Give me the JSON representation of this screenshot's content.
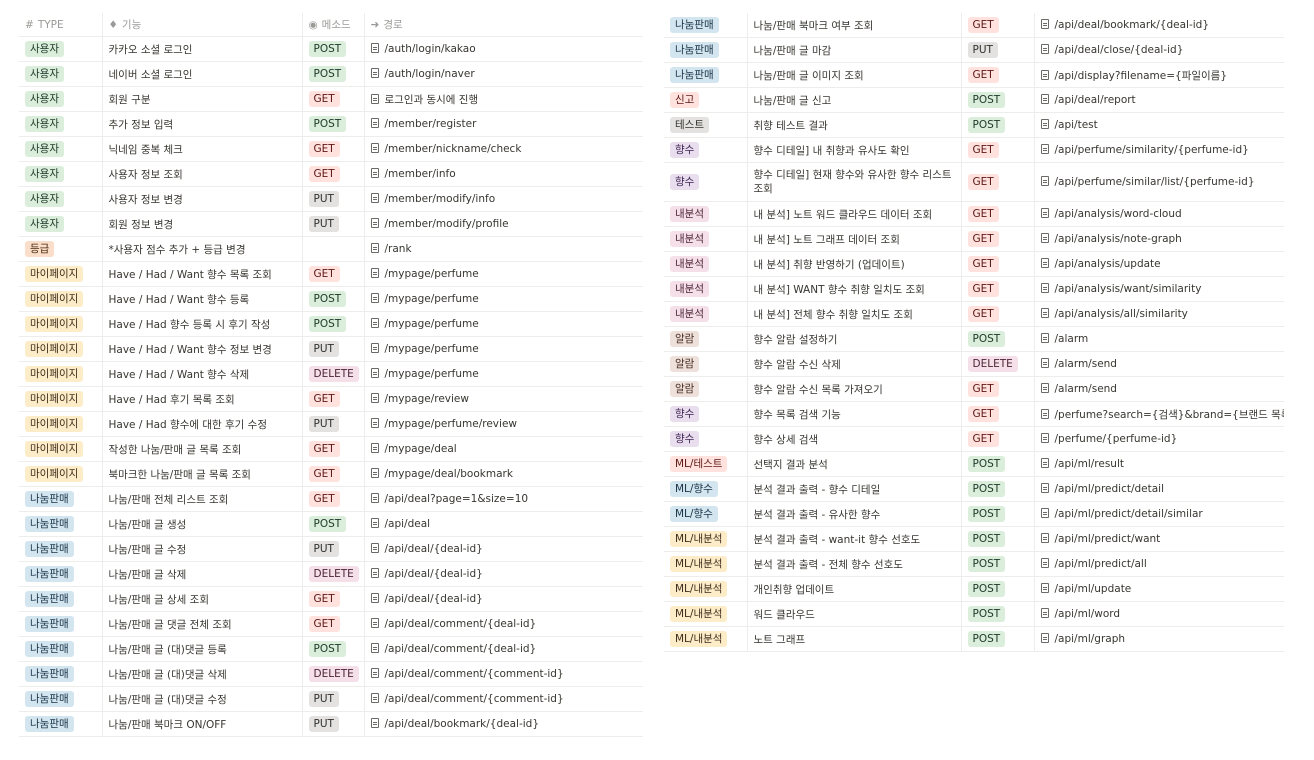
{
  "header": {
    "type_icon": "#",
    "type_label": "TYPE",
    "func_label": "기능",
    "method_label": "메소드",
    "path_label": "경로"
  },
  "colors": {
    "gray": "#e3e2e0",
    "green": "#dbeddb",
    "red": "#ffe2dd",
    "pink": "#f5e0e9",
    "orange": "#fadec9",
    "yellow": "#fdecc8",
    "blue": "#d3e5ef",
    "purple": "#e8deee",
    "brown": "#eee0da"
  },
  "left_rows": [
    {
      "type": "사용자",
      "type_color": "green",
      "func": "카카오 소셜 로그인",
      "method": "POST",
      "method_color": "green",
      "path": "/auth/login/kakao"
    },
    {
      "type": "사용자",
      "type_color": "green",
      "func": "네이버 소셜 로그인",
      "method": "POST",
      "method_color": "green",
      "path": "/auth/login/naver"
    },
    {
      "type": "사용자",
      "type_color": "green",
      "func": "회원 구분",
      "method": "GET",
      "method_color": "red",
      "path": "로그인과 동시에 진행"
    },
    {
      "type": "사용자",
      "type_color": "green",
      "func": "추가 정보 입력",
      "method": "POST",
      "method_color": "green",
      "path": "/member/register"
    },
    {
      "type": "사용자",
      "type_color": "green",
      "func": "닉네임 중복 체크",
      "method": "GET",
      "method_color": "red",
      "path": "/member/nickname/check"
    },
    {
      "type": "사용자",
      "type_color": "green",
      "func": "사용자 정보 조회",
      "method": "GET",
      "method_color": "red",
      "path": "/member/info"
    },
    {
      "type": "사용자",
      "type_color": "green",
      "func": "사용자 정보 변경",
      "method": "PUT",
      "method_color": "gray",
      "path": "/member/modify/info"
    },
    {
      "type": "사용자",
      "type_color": "green",
      "func": "회원 정보 변경",
      "method": "PUT",
      "method_color": "gray",
      "path": "/member/modify/profile"
    },
    {
      "type": "등급",
      "type_color": "orange",
      "func": "*사용자 점수 추가 + 등급 변경",
      "method": "",
      "method_color": "",
      "path": "/rank"
    },
    {
      "type": "마이페이지",
      "type_color": "yellow",
      "func": "Have / Had / Want 향수 목록 조회",
      "method": "GET",
      "method_color": "red",
      "path": "/mypage/perfume"
    },
    {
      "type": "마이페이지",
      "type_color": "yellow",
      "func": "Have / Had / Want 향수 등록",
      "method": "POST",
      "method_color": "green",
      "path": "/mypage/perfume"
    },
    {
      "type": "마이페이지",
      "type_color": "yellow",
      "func": "Have / Had 향수 등록 시 후기 작성",
      "method": "POST",
      "method_color": "green",
      "path": "/mypage/perfume"
    },
    {
      "type": "마이페이지",
      "type_color": "yellow",
      "func": "Have / Had / Want 향수 정보 변경",
      "method": "PUT",
      "method_color": "gray",
      "path": "/mypage/perfume"
    },
    {
      "type": "마이페이지",
      "type_color": "yellow",
      "func": "Have / Had / Want 향수 삭제",
      "method": "DELETE",
      "method_color": "pink",
      "path": "/mypage/perfume"
    },
    {
      "type": "마이페이지",
      "type_color": "yellow",
      "func": "Have / Had 후기 목록 조회",
      "method": "GET",
      "method_color": "red",
      "path": "/mypage/review"
    },
    {
      "type": "마이페이지",
      "type_color": "yellow",
      "func": "Have / Had 향수에 대한 후기 수정",
      "method": "PUT",
      "method_color": "gray",
      "path": "/mypage/perfume/review"
    },
    {
      "type": "마이페이지",
      "type_color": "yellow",
      "func": "작성한 나눔/판매 글 목록 조회",
      "method": "GET",
      "method_color": "red",
      "path": "/mypage/deal"
    },
    {
      "type": "마이페이지",
      "type_color": "yellow",
      "func": "북마크한 나눔/판매 글 목록 조회",
      "method": "GET",
      "method_color": "red",
      "path": "/mypage/deal/bookmark"
    },
    {
      "type": "나눔판매",
      "type_color": "blue",
      "func": "나눔/판매 전체 리스트 조회",
      "method": "GET",
      "method_color": "red",
      "path": "/api/deal?page=1&size=10"
    },
    {
      "type": "나눔판매",
      "type_color": "blue",
      "func": "나눔/판매 글 생성",
      "method": "POST",
      "method_color": "green",
      "path": "/api/deal"
    },
    {
      "type": "나눔판매",
      "type_color": "blue",
      "func": "나눔/판매 글 수정",
      "method": "PUT",
      "method_color": "gray",
      "path": "/api/deal/{deal-id}"
    },
    {
      "type": "나눔판매",
      "type_color": "blue",
      "func": "나눔/판매 글 삭제",
      "method": "DELETE",
      "method_color": "pink",
      "path": "/api/deal/{deal-id}"
    },
    {
      "type": "나눔판매",
      "type_color": "blue",
      "func": "나눔/판매 글 상세 조회",
      "method": "GET",
      "method_color": "red",
      "path": "/api/deal/{deal-id}"
    },
    {
      "type": "나눔판매",
      "type_color": "blue",
      "func": "나눔/판매 글 댓글 전체 조회",
      "method": "GET",
      "method_color": "red",
      "path": "/api/deal/comment/{deal-id}"
    },
    {
      "type": "나눔판매",
      "type_color": "blue",
      "func": "나눔/판매 글 (대)댓글 등록",
      "method": "POST",
      "method_color": "green",
      "path": "/api/deal/comment/{deal-id}"
    },
    {
      "type": "나눔판매",
      "type_color": "blue",
      "func": "나눔/판매 글 (대)댓글 삭제",
      "method": "DELETE",
      "method_color": "pink",
      "path": "/api/deal/comment/{comment-id}"
    },
    {
      "type": "나눔판매",
      "type_color": "blue",
      "func": "나눔/판매 글 (대)댓글 수정",
      "method": "PUT",
      "method_color": "gray",
      "path": "/api/deal/comment/{comment-id}"
    },
    {
      "type": "나눔판매",
      "type_color": "blue",
      "func": "나눔/판매 북마크 ON/OFF",
      "method": "PUT",
      "method_color": "gray",
      "path": "/api/deal/bookmark/{deal-id}"
    }
  ],
  "right_rows": [
    {
      "type": "나눔판매",
      "type_color": "blue",
      "func": "나눔/판매 북마크 여부 조회",
      "method": "GET",
      "method_color": "red",
      "path": "/api/deal/bookmark/{deal-id}"
    },
    {
      "type": "나눔판매",
      "type_color": "blue",
      "func": "나눔/판매 글 마감",
      "method": "PUT",
      "method_color": "gray",
      "path": "/api/deal/close/{deal-id}"
    },
    {
      "type": "나눔판매",
      "type_color": "blue",
      "func": "나눔/판매 글 이미지 조회",
      "method": "GET",
      "method_color": "red",
      "path": "/api/display?filename={파일이름}"
    },
    {
      "type": "신고",
      "type_color": "red",
      "func": "나눔/판매 글 신고",
      "method": "POST",
      "method_color": "green",
      "path": "/api/deal/report"
    },
    {
      "type": "테스트",
      "type_color": "gray",
      "func": "취향 테스트 결과",
      "method": "POST",
      "method_color": "green",
      "path": "/api/test"
    },
    {
      "type": "향수",
      "type_color": "purple",
      "func": "향수 디테일] 내 취향과 유사도 확인",
      "method": "GET",
      "method_color": "red",
      "path": "/api/perfume/similarity/{perfume-id}"
    },
    {
      "type": "향수",
      "type_color": "purple",
      "func": "향수 디테일] 현재 향수와 유사한 향수 리스트 조회",
      "method": "GET",
      "method_color": "red",
      "path": "/api/perfume/similar/list/{perfume-id}",
      "tall": true
    },
    {
      "type": "내분석",
      "type_color": "pink",
      "func": "내 분석] 노트 워드 클라우드 데이터 조회",
      "method": "GET",
      "method_color": "red",
      "path": "/api/analysis/word-cloud"
    },
    {
      "type": "내분석",
      "type_color": "pink",
      "func": "내 분석] 노트 그래프 데이터 조회",
      "method": "GET",
      "method_color": "red",
      "path": "/api/analysis/note-graph"
    },
    {
      "type": "내분석",
      "type_color": "pink",
      "func": "내 분석] 취향 반영하기 (업데이트)",
      "method": "GET",
      "method_color": "red",
      "path": "/api/analysis/update"
    },
    {
      "type": "내분석",
      "type_color": "pink",
      "func": "내 분석] WANT 향수 취향 일치도 조회",
      "method": "GET",
      "method_color": "red",
      "path": "/api/analysis/want/similarity"
    },
    {
      "type": "내분석",
      "type_color": "pink",
      "func": "내 분석] 전체 향수 취향 일치도 조회",
      "method": "GET",
      "method_color": "red",
      "path": "/api/analysis/all/similarity"
    },
    {
      "type": "알람",
      "type_color": "brown",
      "func": "향수 알람 설정하기",
      "method": "POST",
      "method_color": "green",
      "path": "/alarm"
    },
    {
      "type": "알람",
      "type_color": "brown",
      "func": "향수 알람 수신 삭제",
      "method": "DELETE",
      "method_color": "pink",
      "path": "/alarm/send"
    },
    {
      "type": "알람",
      "type_color": "brown",
      "func": "향수 알람 수신 목록 가져오기",
      "method": "GET",
      "method_color": "red",
      "path": "/alarm/send"
    },
    {
      "type": "향수",
      "type_color": "purple",
      "func": "향수 목록 검색 기능",
      "method": "GET",
      "method_color": "red",
      "path": "/perfume?search={검색}&brand={브랜드 목록"
    },
    {
      "type": "향수",
      "type_color": "purple",
      "func": "향수 상세 검색",
      "method": "GET",
      "method_color": "red",
      "path": "/perfume/{perfume-id}"
    },
    {
      "type": "ML/테스트",
      "type_color": "red",
      "func": "선택지 결과 분석",
      "method": "POST",
      "method_color": "green",
      "path": "/api/ml/result"
    },
    {
      "type": "ML/향수",
      "type_color": "blue",
      "func": "분석 결과 출력 -  향수 디테일",
      "method": "POST",
      "method_color": "green",
      "path": "/api/ml/predict/detail"
    },
    {
      "type": "ML/향수",
      "type_color": "blue",
      "func": "분석 결과 출력 - 유사한 향수",
      "method": "POST",
      "method_color": "green",
      "path": "/api/ml/predict/detail/similar"
    },
    {
      "type": "ML/내분석",
      "type_color": "yellow",
      "func": "분석 결과 출력 - want-it 향수 선호도",
      "method": "POST",
      "method_color": "green",
      "path": "/api/ml/predict/want"
    },
    {
      "type": "ML/내분석",
      "type_color": "yellow",
      "func": "분석 결과 출력 - 전체 향수 선호도",
      "method": "POST",
      "method_color": "green",
      "path": "/api/ml/predict/all"
    },
    {
      "type": "ML/내분석",
      "type_color": "yellow",
      "func": "개인취향 업데이트",
      "method": "POST",
      "method_color": "green",
      "path": "/api/ml/update"
    },
    {
      "type": "ML/내분석",
      "type_color": "yellow",
      "func": "워드 클라우드",
      "method": "POST",
      "method_color": "green",
      "path": "/api/ml/word"
    },
    {
      "type": "ML/내분석",
      "type_color": "yellow",
      "func": "노트 그래프",
      "method": "POST",
      "method_color": "green",
      "path": "/api/ml/graph"
    }
  ]
}
